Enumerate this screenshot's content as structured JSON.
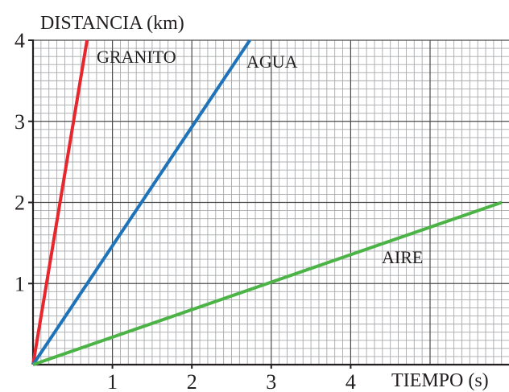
{
  "chart_data": {
    "type": "line",
    "ylabel": "DISTANCIA (km)",
    "xlabel": "TIEMPO (s)",
    "xlim": [
      0,
      5.9
    ],
    "ylim": [
      0,
      4
    ],
    "grid": true,
    "x_ticks": [
      1,
      2,
      3,
      4
    ],
    "y_ticks": [
      1,
      2,
      3,
      4
    ],
    "x_tick_labels": [
      "1",
      "2",
      "3",
      "4"
    ],
    "y_tick_labels": [
      "1",
      "2",
      "3",
      "4"
    ],
    "series": [
      {
        "name": "GRANITO",
        "color": "#e8262e",
        "x": [
          0,
          0.68
        ],
        "y": [
          0,
          4
        ]
      },
      {
        "name": "AGUA",
        "color": "#1f73b8",
        "x": [
          0,
          2.73
        ],
        "y": [
          0,
          4
        ]
      },
      {
        "name": "AIRE",
        "color": "#4cb447",
        "x": [
          0,
          5.9
        ],
        "y": [
          0,
          2
        ]
      }
    ],
    "annotations": [
      {
        "text": "GRANITO",
        "series": 0
      },
      {
        "text": "AGUA",
        "series": 1
      },
      {
        "text": "AIRE",
        "series": 2
      }
    ]
  }
}
